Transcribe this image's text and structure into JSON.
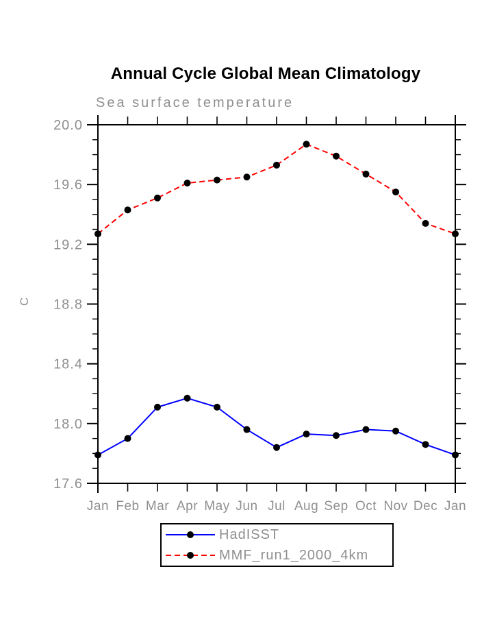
{
  "page": {
    "background": "#ffffff"
  },
  "chart_data": {
    "type": "line",
    "title": "Annual Cycle Global Mean Climatology",
    "subtitle": "Sea surface temperature",
    "ylabel": "C",
    "x_categories": [
      "Jan",
      "Feb",
      "Mar",
      "Apr",
      "May",
      "Jun",
      "Jul",
      "Aug",
      "Sep",
      "Oct",
      "Nov",
      "Dec",
      "Jan"
    ],
    "ylim": [
      17.6,
      20.0
    ],
    "y_major_step": 0.4,
    "y_minor_step": 0.1,
    "y_tick_labels": [
      "17.6",
      "18.0",
      "18.4",
      "18.8",
      "19.2",
      "19.6",
      "20.0"
    ],
    "grid": false,
    "legend_position": "bottom",
    "series": [
      {
        "name": "HadISST",
        "color": "#0000ff",
        "style": "solid",
        "marker": "filled-circle",
        "marker_color": "#000000",
        "values": [
          17.79,
          17.9,
          18.11,
          18.17,
          18.11,
          17.96,
          17.84,
          17.93,
          17.92,
          17.96,
          17.95,
          17.86,
          17.79
        ]
      },
      {
        "name": "MMF_run1_2000_4km",
        "color": "#ff0000",
        "style": "dashed",
        "marker": "filled-circle",
        "marker_color": "#000000",
        "values": [
          19.27,
          19.43,
          19.51,
          19.61,
          19.63,
          19.65,
          19.73,
          19.87,
          19.79,
          19.67,
          19.55,
          19.34,
          19.27
        ]
      }
    ]
  },
  "colors": {
    "axis": "#000000",
    "label_gray": "#8f8f8f",
    "background": "#ffffff"
  }
}
